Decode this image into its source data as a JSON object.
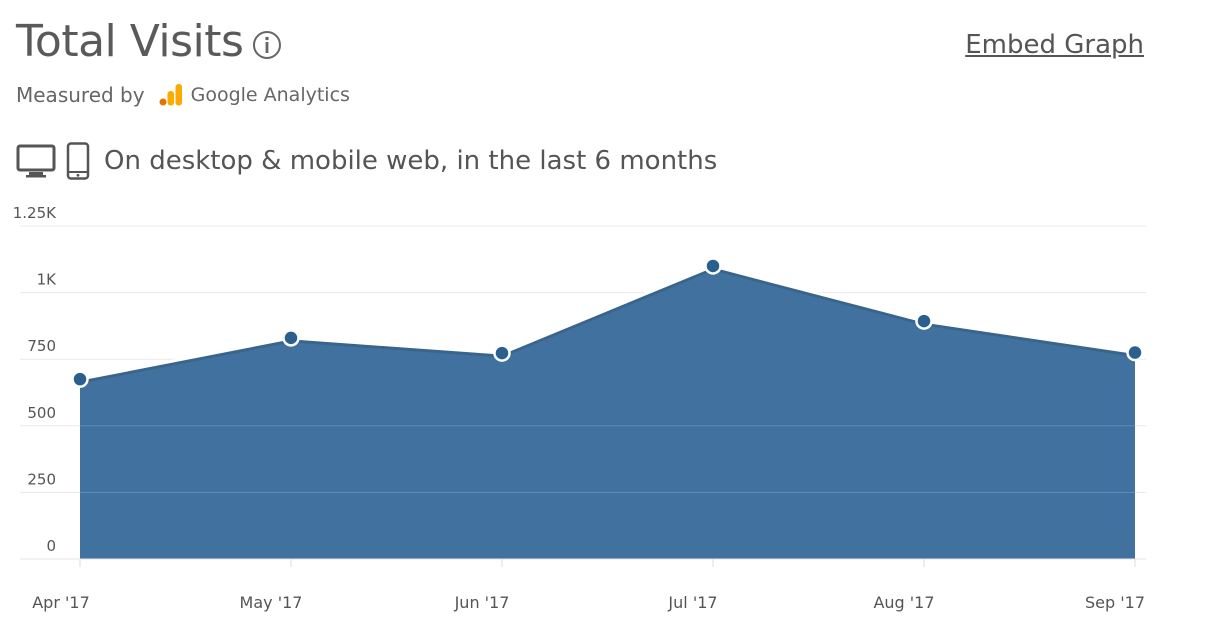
{
  "header": {
    "title": "Total Visits",
    "embed_label": "Embed Graph",
    "measured_by_label": "Measured by",
    "analytics_name": "Google Analytics",
    "scope_text": "On desktop & mobile web, in the last 6 months"
  },
  "icons": {
    "info": "info-icon",
    "analytics_logo": "google-analytics-icon",
    "desktop": "desktop-icon",
    "mobile": "mobile-icon"
  },
  "colors": {
    "area_fill": "#41729f",
    "marker": "#2a5f8e",
    "line": "#ffffff",
    "grid": "#e8e8e8",
    "ga_orange": "#f9ab00",
    "ga_dark_orange": "#e37400"
  },
  "chart_data": {
    "type": "area",
    "categories": [
      "Apr '17",
      "May '17",
      "Jun '17",
      "Jul '17",
      "Aug '17",
      "Sep '17"
    ],
    "values": [
      675,
      830,
      773,
      1100,
      893,
      775
    ],
    "ylim": [
      0,
      1250
    ],
    "yticks": [
      0,
      250,
      500,
      750,
      1000,
      1250
    ],
    "ytick_labels": [
      "0",
      "250",
      "500",
      "750",
      "1K",
      "1.25K"
    ],
    "grid": true,
    "legend": "none"
  }
}
